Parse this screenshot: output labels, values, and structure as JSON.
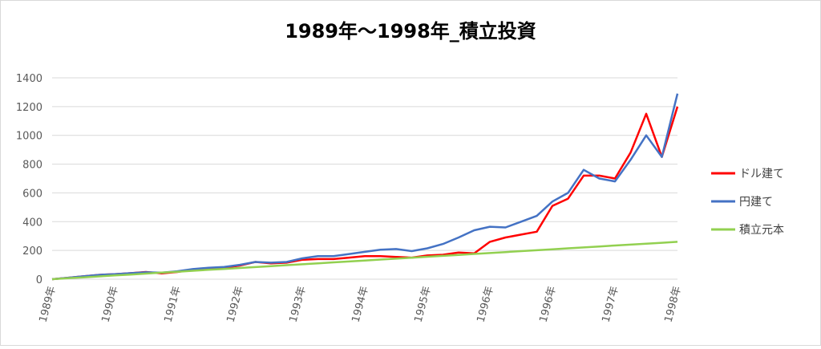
{
  "chart_data": {
    "type": "line",
    "title": "1989年～1998年_積立投資",
    "categories": [
      "1989年",
      null,
      null,
      null,
      "1990年",
      null,
      null,
      null,
      "1991年",
      null,
      null,
      null,
      "1992年",
      null,
      null,
      null,
      "1993年",
      null,
      null,
      null,
      "1994年",
      null,
      null,
      null,
      "1995年",
      null,
      null,
      null,
      "1996年",
      null,
      null,
      null,
      "1996年",
      null,
      null,
      null,
      "1997年",
      null,
      null,
      null,
      "1998年"
    ],
    "series": [
      {
        "name": "ドル建て",
        "color": "#ff0000",
        "values": [
          0,
          10,
          20,
          30,
          35,
          42,
          50,
          40,
          50,
          65,
          75,
          80,
          95,
          120,
          110,
          115,
          135,
          140,
          140,
          150,
          160,
          160,
          155,
          150,
          165,
          170,
          185,
          180,
          260,
          290,
          310,
          330,
          510,
          560,
          720,
          720,
          700,
          880,
          1150,
          850,
          1200
        ]
      },
      {
        "name": "円建て",
        "color": "#4472c4",
        "values": [
          0,
          10,
          20,
          30,
          35,
          42,
          48,
          45,
          55,
          70,
          80,
          85,
          100,
          120,
          115,
          120,
          145,
          160,
          160,
          175,
          190,
          205,
          210,
          195,
          215,
          245,
          290,
          340,
          365,
          360,
          400,
          440,
          540,
          600,
          760,
          700,
          680,
          830,
          1000,
          850,
          1290
        ]
      },
      {
        "name": "積立元本",
        "color": "#92d050",
        "values": [
          0,
          6.5,
          13,
          19.5,
          26,
          32.5,
          39,
          45.5,
          52,
          58.5,
          65,
          71.5,
          78,
          84.5,
          91,
          97.5,
          104,
          110.5,
          117,
          123.5,
          130,
          136.5,
          143,
          149.5,
          156,
          162.5,
          169,
          175.5,
          182,
          188.5,
          195,
          201.5,
          208,
          214.5,
          221,
          227.5,
          234,
          240.5,
          247,
          253.5,
          260
        ]
      }
    ],
    "ylim": [
      0,
      1400
    ],
    "yticks": [
      0,
      200,
      400,
      600,
      800,
      1000,
      1200,
      1400
    ],
    "grid": true,
    "legend": "right"
  }
}
